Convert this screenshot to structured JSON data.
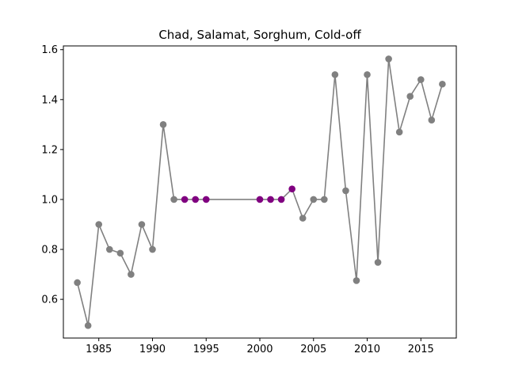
{
  "chart_data": {
    "type": "line",
    "title": "Chad, Salamat, Sorghum, Cold-off",
    "xlabel": "",
    "ylabel": "",
    "xlim": [
      1981.7,
      2018.3
    ],
    "ylim": [
      0.445,
      1.615
    ],
    "xticks": [
      1985,
      1990,
      1995,
      2000,
      2005,
      2010,
      2015
    ],
    "yticks": [
      0.6,
      0.8,
      1.0,
      1.2,
      1.4,
      1.6
    ],
    "grid": false,
    "line_color": "#808080",
    "marker_color": "#808080",
    "highlight_color": "#800080",
    "series": [
      {
        "x": [
          1983,
          1984,
          1985,
          1986,
          1987,
          1988,
          1989,
          1990,
          1991,
          1992,
          1993,
          1994,
          1995,
          2000,
          2001,
          2002,
          2003,
          2004,
          2005,
          2006,
          2007,
          2008,
          2009,
          2010,
          2011,
          2012,
          2013,
          2014,
          2015,
          2016,
          2017
        ],
        "y": [
          0.667,
          0.495,
          0.9,
          0.8,
          0.785,
          0.7,
          0.9,
          0.8,
          1.3,
          1.0,
          1.0,
          1.0,
          1.0,
          1.0,
          1.0,
          1.0,
          1.042,
          0.925,
          1.0,
          1.0,
          1.5,
          1.035,
          0.675,
          1.5,
          0.748,
          1.563,
          1.27,
          1.413,
          1.48,
          1.318,
          1.462
        ],
        "highlight": [
          false,
          false,
          false,
          false,
          false,
          false,
          false,
          false,
          false,
          false,
          true,
          true,
          true,
          true,
          true,
          true,
          true,
          false,
          false,
          false,
          false,
          false,
          false,
          false,
          false,
          false,
          false,
          false,
          false,
          false,
          false
        ]
      }
    ]
  }
}
